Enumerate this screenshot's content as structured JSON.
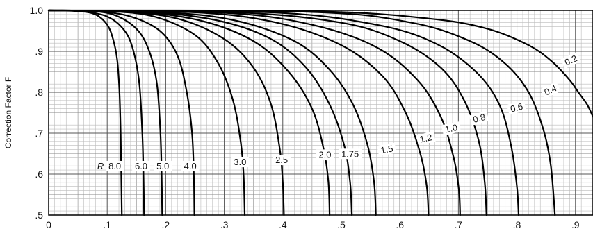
{
  "chart_data": {
    "type": "line",
    "title": "",
    "xlabel": "",
    "ylabel": "Correction Factor F",
    "xlim": [
      0,
      0.93
    ],
    "ylim": [
      0.5,
      1.0
    ],
    "grid": true,
    "x_ticks": [
      "0",
      ".1",
      ".2",
      ".3",
      ".4",
      ".5",
      ".6",
      ".7",
      ".8",
      ".9"
    ],
    "y_ticks": [
      "1.0",
      ".9",
      ".8",
      ".7",
      ".6",
      ".5"
    ],
    "series_prefix": "R",
    "series": [
      {
        "name": "8.0",
        "points": [
          [
            0,
            1.0
          ],
          [
            0.05,
            0.998
          ],
          [
            0.08,
            0.99
          ],
          [
            0.1,
            0.965
          ],
          [
            0.11,
            0.93
          ],
          [
            0.117,
            0.88
          ],
          [
            0.121,
            0.8
          ],
          [
            0.123,
            0.7
          ],
          [
            0.124,
            0.6
          ],
          [
            0.125,
            0.5
          ]
        ]
      },
      {
        "name": "6.0",
        "points": [
          [
            0,
            1.0
          ],
          [
            0.05,
            0.999
          ],
          [
            0.1,
            0.985
          ],
          [
            0.13,
            0.95
          ],
          [
            0.145,
            0.9
          ],
          [
            0.155,
            0.82
          ],
          [
            0.16,
            0.7
          ],
          [
            0.162,
            0.6
          ],
          [
            0.163,
            0.5
          ]
        ]
      },
      {
        "name": "5.0",
        "points": [
          [
            0,
            1.0
          ],
          [
            0.06,
            0.999
          ],
          [
            0.11,
            0.99
          ],
          [
            0.15,
            0.955
          ],
          [
            0.172,
            0.9
          ],
          [
            0.185,
            0.82
          ],
          [
            0.191,
            0.7
          ],
          [
            0.193,
            0.6
          ],
          [
            0.194,
            0.5
          ]
        ]
      },
      {
        "name": "4.0",
        "points": [
          [
            0,
            1.0
          ],
          [
            0.08,
            0.998
          ],
          [
            0.14,
            0.985
          ],
          [
            0.19,
            0.95
          ],
          [
            0.22,
            0.89
          ],
          [
            0.236,
            0.8
          ],
          [
            0.245,
            0.7
          ],
          [
            0.248,
            0.6
          ],
          [
            0.249,
            0.5
          ]
        ]
      },
      {
        "name": "3.0",
        "points": [
          [
            0,
            1.0
          ],
          [
            0.1,
            0.998
          ],
          [
            0.18,
            0.985
          ],
          [
            0.25,
            0.94
          ],
          [
            0.29,
            0.87
          ],
          [
            0.315,
            0.78
          ],
          [
            0.328,
            0.68
          ],
          [
            0.333,
            0.6
          ],
          [
            0.335,
            0.5
          ]
        ]
      },
      {
        "name": "2.5",
        "points": [
          [
            0,
            1.0
          ],
          [
            0.12,
            0.997
          ],
          [
            0.22,
            0.98
          ],
          [
            0.3,
            0.93
          ],
          [
            0.35,
            0.86
          ],
          [
            0.38,
            0.77
          ],
          [
            0.395,
            0.66
          ],
          [
            0.4,
            0.58
          ],
          [
            0.402,
            0.5
          ]
        ]
      },
      {
        "name": "2.0",
        "points": [
          [
            0,
            1.0
          ],
          [
            0.15,
            0.996
          ],
          [
            0.26,
            0.975
          ],
          [
            0.35,
            0.925
          ],
          [
            0.41,
            0.85
          ],
          [
            0.45,
            0.76
          ],
          [
            0.47,
            0.66
          ],
          [
            0.478,
            0.58
          ],
          [
            0.48,
            0.5
          ]
        ]
      },
      {
        "name": "1.75",
        "points": [
          [
            0,
            1.0
          ],
          [
            0.17,
            0.996
          ],
          [
            0.29,
            0.975
          ],
          [
            0.38,
            0.93
          ],
          [
            0.44,
            0.86
          ],
          [
            0.48,
            0.77
          ],
          [
            0.505,
            0.67
          ],
          [
            0.515,
            0.58
          ],
          [
            0.518,
            0.5
          ]
        ]
      },
      {
        "name": "1.5",
        "points": [
          [
            0,
            1.0
          ],
          [
            0.2,
            0.995
          ],
          [
            0.32,
            0.975
          ],
          [
            0.42,
            0.925
          ],
          [
            0.48,
            0.855
          ],
          [
            0.52,
            0.77
          ],
          [
            0.545,
            0.67
          ],
          [
            0.556,
            0.58
          ],
          [
            0.559,
            0.5
          ]
        ]
      },
      {
        "name": "1.2",
        "points": [
          [
            0,
            1.0
          ],
          [
            0.25,
            0.995
          ],
          [
            0.39,
            0.97
          ],
          [
            0.5,
            0.915
          ],
          [
            0.57,
            0.84
          ],
          [
            0.61,
            0.75
          ],
          [
            0.635,
            0.65
          ],
          [
            0.646,
            0.57
          ],
          [
            0.649,
            0.5
          ]
        ]
      },
      {
        "name": "1.0",
        "points": [
          [
            0,
            1.0
          ],
          [
            0.3,
            0.994
          ],
          [
            0.45,
            0.965
          ],
          [
            0.56,
            0.91
          ],
          [
            0.63,
            0.83
          ],
          [
            0.67,
            0.74
          ],
          [
            0.692,
            0.64
          ],
          [
            0.701,
            0.56
          ],
          [
            0.703,
            0.5
          ]
        ]
      },
      {
        "name": "0.8",
        "points": [
          [
            0,
            1.0
          ],
          [
            0.32,
            0.995
          ],
          [
            0.5,
            0.97
          ],
          [
            0.6,
            0.925
          ],
          [
            0.67,
            0.86
          ],
          [
            0.71,
            0.78
          ],
          [
            0.735,
            0.68
          ],
          [
            0.745,
            0.58
          ],
          [
            0.748,
            0.5
          ]
        ]
      },
      {
        "name": "0.6",
        "points": [
          [
            0,
            1.0
          ],
          [
            0.38,
            0.995
          ],
          [
            0.56,
            0.965
          ],
          [
            0.66,
            0.92
          ],
          [
            0.73,
            0.85
          ],
          [
            0.77,
            0.77
          ],
          [
            0.79,
            0.67
          ],
          [
            0.8,
            0.57
          ],
          [
            0.803,
            0.5
          ]
        ]
      },
      {
        "name": "0.4",
        "points": [
          [
            0,
            1.0
          ],
          [
            0.45,
            0.996
          ],
          [
            0.62,
            0.97
          ],
          [
            0.72,
            0.925
          ],
          [
            0.78,
            0.87
          ],
          [
            0.82,
            0.8
          ],
          [
            0.845,
            0.71
          ],
          [
            0.858,
            0.62
          ],
          [
            0.865,
            0.5
          ]
        ]
      },
      {
        "name": "0.2",
        "points": [
          [
            0,
            1.0
          ],
          [
            0.45,
            0.998
          ],
          [
            0.65,
            0.98
          ],
          [
            0.75,
            0.955
          ],
          [
            0.82,
            0.915
          ],
          [
            0.86,
            0.875
          ],
          [
            0.89,
            0.83
          ],
          [
            0.905,
            0.8
          ],
          [
            0.92,
            0.77
          ],
          [
            0.93,
            0.74
          ]
        ]
      }
    ],
    "curve_labels": [
      {
        "text": "8.0",
        "x": 0.113,
        "y": 0.617,
        "prefix": "R "
      },
      {
        "text": "6.0",
        "x": 0.158,
        "y": 0.617
      },
      {
        "text": "5.0",
        "x": 0.195,
        "y": 0.617
      },
      {
        "text": "4.0",
        "x": 0.242,
        "y": 0.617
      },
      {
        "text": "3.0",
        "x": 0.327,
        "y": 0.627
      },
      {
        "text": "2.5",
        "x": 0.398,
        "y": 0.632
      },
      {
        "text": "2.0",
        "x": 0.472,
        "y": 0.645
      },
      {
        "text": "1.75",
        "x": 0.515,
        "y": 0.647
      },
      {
        "text": "1.5",
        "x": 0.578,
        "y": 0.658,
        "rotate": -10
      },
      {
        "text": "1.2",
        "x": 0.645,
        "y": 0.685,
        "rotate": -12
      },
      {
        "text": "1.0",
        "x": 0.688,
        "y": 0.709,
        "rotate": -12
      },
      {
        "text": "0.8",
        "x": 0.736,
        "y": 0.734,
        "rotate": -15
      },
      {
        "text": "0.6",
        "x": 0.8,
        "y": 0.76,
        "rotate": -15
      },
      {
        "text": "0.4",
        "x": 0.858,
        "y": 0.803,
        "rotate": -25
      },
      {
        "text": "0.2",
        "x": 0.893,
        "y": 0.876,
        "rotate": -25
      }
    ]
  }
}
